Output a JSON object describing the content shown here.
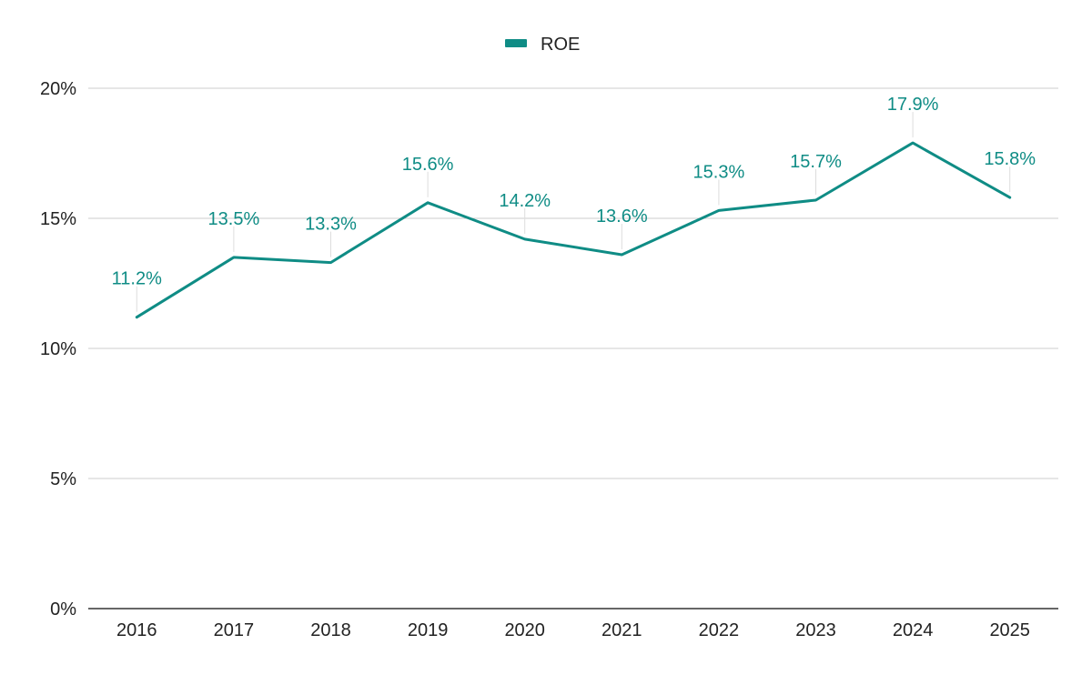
{
  "chart_data": {
    "type": "line",
    "title": "",
    "xlabel": "",
    "ylabel": "",
    "categories": [
      "2016",
      "2017",
      "2018",
      "2019",
      "2020",
      "2021",
      "2022",
      "2023",
      "2024",
      "2025"
    ],
    "series": [
      {
        "name": "ROE",
        "values": [
          11.2,
          13.5,
          13.3,
          15.6,
          14.2,
          13.6,
          15.3,
          15.7,
          17.9,
          15.8
        ],
        "data_labels": [
          "11.2%",
          "13.5%",
          "13.3%",
          "15.6%",
          "14.2%",
          "13.6%",
          "15.3%",
          "15.7%",
          "17.9%",
          "15.8%"
        ],
        "color": "#0f8c85"
      }
    ],
    "ylim": [
      0,
      20
    ],
    "y_ticks": [
      0,
      5,
      10,
      15,
      20
    ],
    "y_tick_labels": [
      "0%",
      "5%",
      "10%",
      "15%",
      "20%"
    ],
    "grid": true,
    "legend_position": "top-center"
  },
  "colors": {
    "series": "#0f8c85",
    "grid": "#cccccc",
    "axis": "#333333",
    "leader": "#dddddd"
  }
}
